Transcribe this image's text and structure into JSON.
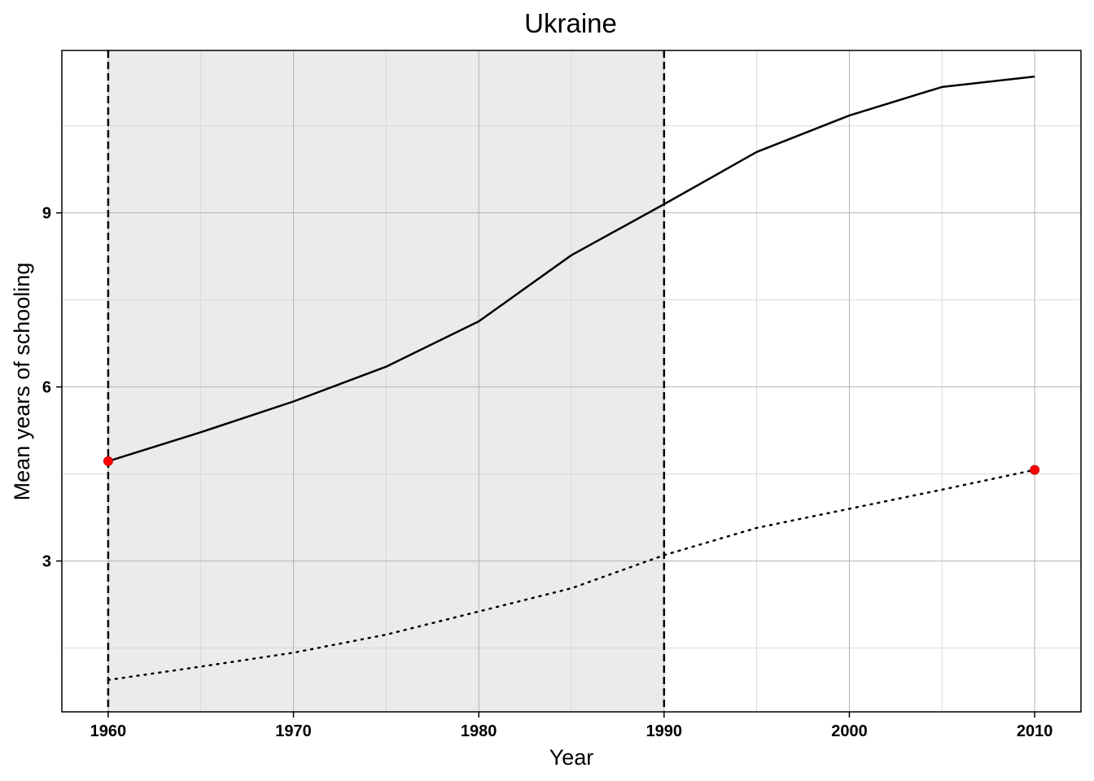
{
  "chart_data": {
    "type": "line",
    "title": "Ukraine",
    "xlabel": "Year",
    "ylabel": "Mean years of schooling",
    "xlim": [
      1957.5,
      2012.5
    ],
    "ylim": [
      0.4,
      11.8
    ],
    "x_ticks": [
      1960,
      1970,
      1980,
      1990,
      2000,
      2010
    ],
    "x_tick_labels": [
      "1960",
      "1970",
      "1980",
      "1990",
      "2000",
      "2010"
    ],
    "y_ticks": [
      3,
      6,
      9
    ],
    "y_tick_labels": [
      "3",
      "6",
      "9"
    ],
    "x": [
      1960,
      1965,
      1970,
      1975,
      1980,
      1985,
      1990,
      1995,
      2000,
      2005,
      2010
    ],
    "series": [
      {
        "style": "solid",
        "color": "#000000",
        "values": [
          4.72,
          5.22,
          5.75,
          6.35,
          7.13,
          8.27,
          9.15,
          10.05,
          10.68,
          11.17,
          11.35
        ]
      },
      {
        "style": "dotted",
        "color": "#000000",
        "values": [
          0.95,
          1.18,
          1.42,
          1.73,
          2.13,
          2.53,
          3.1,
          3.57,
          3.9,
          4.23,
          4.57
        ]
      }
    ],
    "points": [
      {
        "x": 1960,
        "y": 4.72,
        "color": "#ff0000"
      },
      {
        "x": 2010,
        "y": 4.57,
        "color": "#ff0000"
      }
    ],
    "shaded_region": {
      "x_start": 1960,
      "x_end": 1990,
      "color": "#ebebeb"
    },
    "vertical_lines": [
      {
        "x": 1960,
        "style": "dashed"
      },
      {
        "x": 1990,
        "style": "dashed"
      }
    ],
    "grid": true,
    "legend": "none"
  }
}
